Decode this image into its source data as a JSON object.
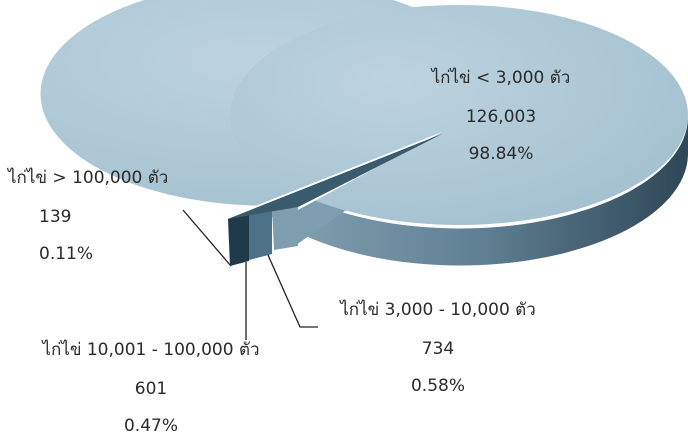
{
  "chart_data": {
    "type": "pie",
    "title": "",
    "legend": "none",
    "slices": [
      {
        "label": "ไก่ไข่ < 3,000 ตัว",
        "value": 126003,
        "percent": "98.84%",
        "value_label": "126,003",
        "color": "#a9c4d2"
      },
      {
        "label": "ไก่ไข่ 3,000 - 10,000 ตัว",
        "value": 734,
        "percent": "0.58%",
        "value_label": "734",
        "color": "#7e9eb0"
      },
      {
        "label": "ไก่ไข่ 10,001 - 100,000 ตัว",
        "value": 601,
        "percent": "0.47%",
        "value_label": "601",
        "color": "#4d7186"
      },
      {
        "label": "ไก่ไข่ > 100,000 ตัว",
        "value": 139,
        "percent": "0.11%",
        "value_label": "139",
        "color": "#1f3a4b"
      }
    ]
  }
}
